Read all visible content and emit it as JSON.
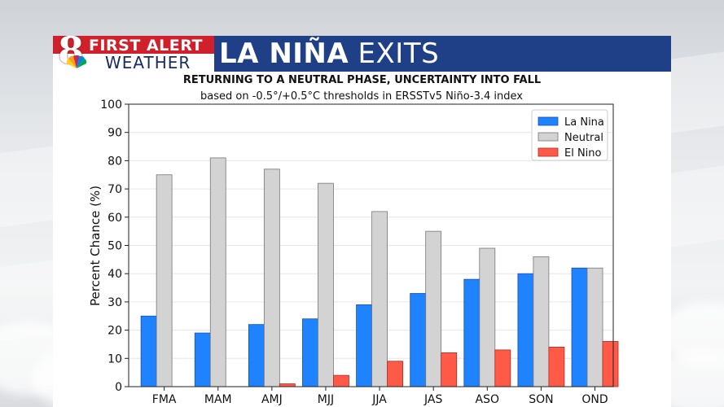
{
  "banner": {
    "logo_number": "8",
    "logo_top": "FIRST ALERT",
    "logo_bottom": "WEATHER",
    "headline_bold": "LA NIÑA",
    "headline_rest": "EXITS",
    "subtitle": "RETURNING TO A NEUTRAL PHASE, UNCERTAINTY INTO FALL"
  },
  "colors": {
    "banner": "#1f3f86",
    "logo_red": "#d0202c",
    "la_nina": "#1f82ff",
    "neutral": "#d3d3d3",
    "el_nino": "#ff5a47"
  },
  "chart_data": {
    "type": "bar",
    "title": "based on -0.5°/+0.5°C thresholds in ERSSTv5 Niño-3.4 index",
    "ylabel": "Percent Chance (%)",
    "xlabel": "",
    "categories": [
      "FMA",
      "MAM",
      "AMJ",
      "MJJ",
      "JJA",
      "JAS",
      "ASO",
      "SON",
      "OND"
    ],
    "ylim": [
      0,
      100
    ],
    "yticks": [
      0,
      10,
      20,
      30,
      40,
      50,
      60,
      70,
      80,
      90,
      100
    ],
    "grid": true,
    "legend": "top-right",
    "series": [
      {
        "name": "La Nina",
        "color": "#1f82ff",
        "values": [
          25,
          19,
          22,
          24,
          29,
          33,
          38,
          40,
          42
        ]
      },
      {
        "name": "Neutral",
        "color": "#d3d3d3",
        "values": [
          75,
          81,
          77,
          72,
          62,
          55,
          49,
          46,
          42
        ]
      },
      {
        "name": "El Nino",
        "color": "#ff5a47",
        "values": [
          0,
          0,
          1,
          4,
          9,
          12,
          13,
          14,
          16
        ]
      }
    ]
  }
}
